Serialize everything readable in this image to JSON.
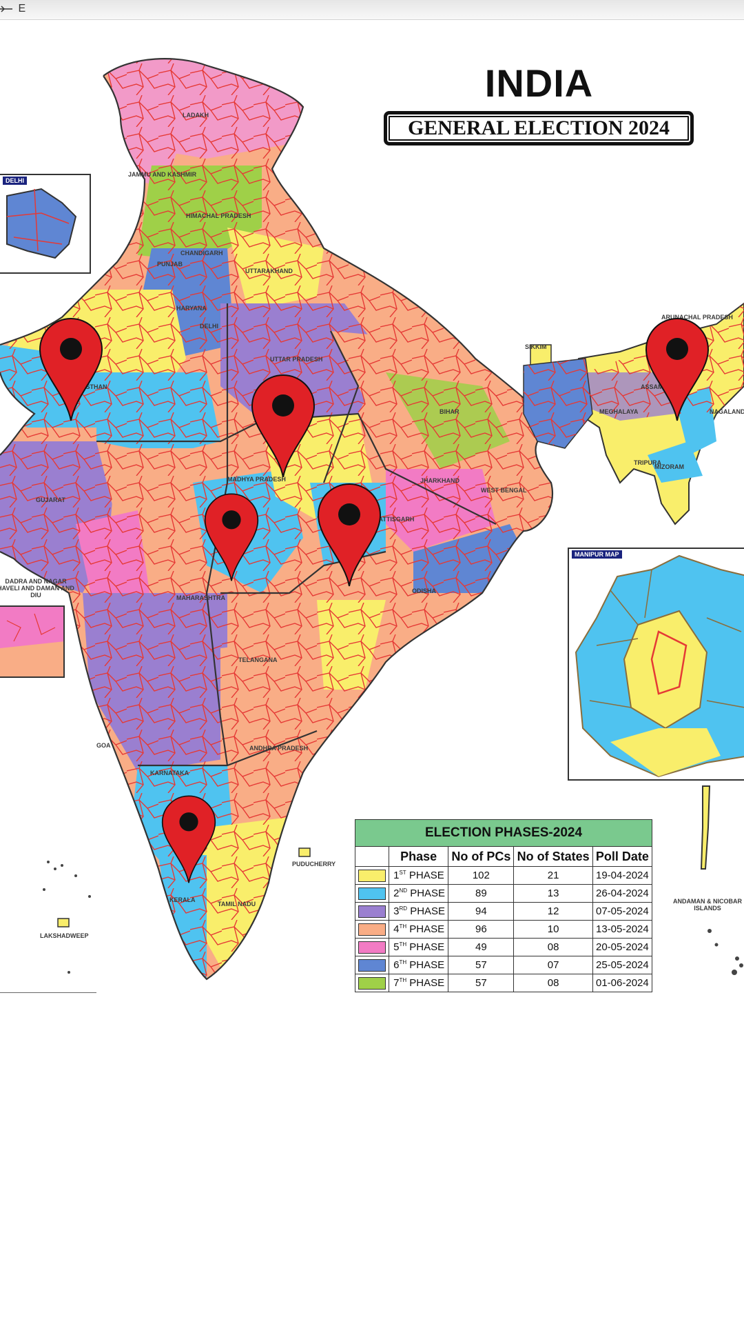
{
  "top_bar": {
    "compass_letter": "E"
  },
  "map": {
    "title": "INDIA",
    "subtitle": "GENERAL ELECTION 2024",
    "labels": {
      "ladakh": "LADAKH",
      "jammu_kashmir": "JAMMU AND KASHMIR",
      "himachal": "HIMACHAL PRADESH",
      "punjab": "PUNJAB",
      "chandigarh": "CHANDIGARH",
      "uttarakhand": "UTTARAKHAND",
      "haryana": "HARYANA",
      "delhi": "DELHI",
      "uttar_pradesh": "UTTAR PRADESH",
      "rajasthan": "RAJASTHAN",
      "bihar": "BIHAR",
      "sikkim": "SIKKIM",
      "arunachal": "ARUNACHAL PRADESH",
      "assam": "ASSAM",
      "nagaland": "NAGALAND",
      "meghalaya": "MEGHALAYA",
      "tripura": "TRIPURA",
      "mizoram": "MIZORAM",
      "gujarat": "GUJARAT",
      "jharkhand": "JHARKHAND",
      "west_bengal": "WEST BENGAL",
      "madhya_pradesh": "MADHYA PRADESH",
      "chhattisgarh": "CHHATTISGARH",
      "odisha": "ODISHA",
      "maharashtra": "MAHARASHTRA",
      "telangana": "TELANGANA",
      "andhra": "ANDHRA PRADESH",
      "karnataka": "KARNATAKA",
      "goa": "GOA",
      "kerala": "KERALA",
      "tamil_nadu": "TAMIL NADU",
      "puducherry": "PUDUCHERRY",
      "lakshadweep": "LAKSHADWEEP",
      "andaman": "ANDAMAN & NICOBAR ISLANDS",
      "dnh_dd": "DADRA AND NAGAR HAVELI AND DAMAN AND DIU"
    },
    "insets": {
      "delhi_label": "DELHI",
      "manipur_label": "MANIPUR MAP"
    },
    "pins": [
      "location-pin",
      "location-pin",
      "location-pin",
      "location-pin",
      "location-pin",
      "location-pin"
    ]
  },
  "phase_table": {
    "caption": "ELECTION PHASES-2024",
    "headers": [
      "Phase",
      "No of PCs",
      "No of States",
      "Poll Date"
    ],
    "rows": [
      {
        "num": "1",
        "suffix": "ST",
        "label": "PHASE",
        "color": "#f9ee6b",
        "pcs": "102",
        "states": "21",
        "date": "19-04-2024"
      },
      {
        "num": "2",
        "suffix": "ND",
        "label": "PHASE",
        "color": "#4fc3f0",
        "pcs": "89",
        "states": "13",
        "date": "26-04-2024"
      },
      {
        "num": "3",
        "suffix": "RD",
        "label": "PHASE",
        "color": "#9a7fd0",
        "pcs": "94",
        "states": "12",
        "date": "07-05-2024"
      },
      {
        "num": "4",
        "suffix": "TH",
        "label": "PHASE",
        "color": "#f9ad86",
        "pcs": "96",
        "states": "10",
        "date": "13-05-2024"
      },
      {
        "num": "5",
        "suffix": "TH",
        "label": "PHASE",
        "color": "#f27bc4",
        "pcs": "49",
        "states": "08",
        "date": "20-05-2024"
      },
      {
        "num": "6",
        "suffix": "TH",
        "label": "PHASE",
        "color": "#5f86d3",
        "pcs": "57",
        "states": "07",
        "date": "25-05-2024"
      },
      {
        "num": "7",
        "suffix": "TH",
        "label": "PHASE",
        "color": "#9fd048",
        "pcs": "57",
        "states": "08",
        "date": "01-06-2024"
      }
    ]
  },
  "colors": {
    "pin": "#e02126",
    "border": "#e53935",
    "state_border": "#333333",
    "yellow": "#f9ee6b",
    "cyan": "#4fc3f0",
    "purple": "#9a7fd0",
    "peach": "#f9ad86",
    "pink": "#f27bc4",
    "blue": "#5f86d3",
    "green": "#9fd048",
    "ladakh_pink": "#f29ac8"
  }
}
